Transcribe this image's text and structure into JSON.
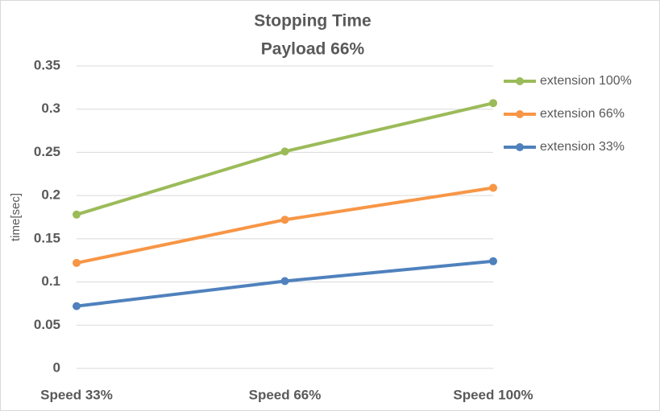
{
  "chart_data": {
    "type": "line",
    "title": [
      "Stopping Time",
      "Payload 66%"
    ],
    "y_label": "time[sec]",
    "categories": [
      "Speed 33%",
      "Speed 66%",
      "Speed 100%"
    ],
    "series": [
      {
        "name": "extension 100%",
        "color": "#9bbb59",
        "values": [
          0.178,
          0.251,
          0.307
        ]
      },
      {
        "name": "extension 66%",
        "color": "#f79646",
        "values": [
          0.122,
          0.172,
          0.209
        ]
      },
      {
        "name": "extension 33%",
        "color": "#4f81bd",
        "values": [
          0.072,
          0.101,
          0.124
        ]
      }
    ],
    "ylim": [
      0,
      0.35
    ],
    "yticks": [
      0,
      0.05,
      0.1,
      0.15,
      0.2,
      0.25,
      0.3,
      0.35
    ],
    "grid": true,
    "legend": "right"
  }
}
